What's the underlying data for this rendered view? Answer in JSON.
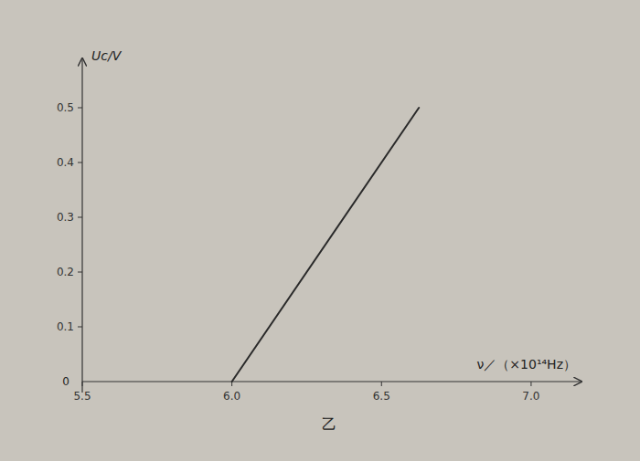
{
  "chart_data": {
    "type": "line",
    "x_label": "ν／（×10¹⁴Hz）",
    "y_label": "Uc/V",
    "annotations": [
      {
        "text": "0"
      },
      {
        "text": "乙"
      }
    ],
    "x": [
      6.0,
      6.625
    ],
    "values": [
      0.0,
      0.5
    ],
    "color": "#2a2a2a",
    "xlim": [
      5.5,
      7.15
    ],
    "ylim": [
      -0.02,
      0.58
    ],
    "xticks": [
      5.5,
      {
        "value": 6.0,
        "label": "6.0"
      },
      6.5,
      {
        "value": 7.0,
        "label": "7.0"
      }
    ],
    "yticks": [
      0.1,
      0.2,
      0.3,
      0.4,
      0.5
    ],
    "grid": false
  }
}
